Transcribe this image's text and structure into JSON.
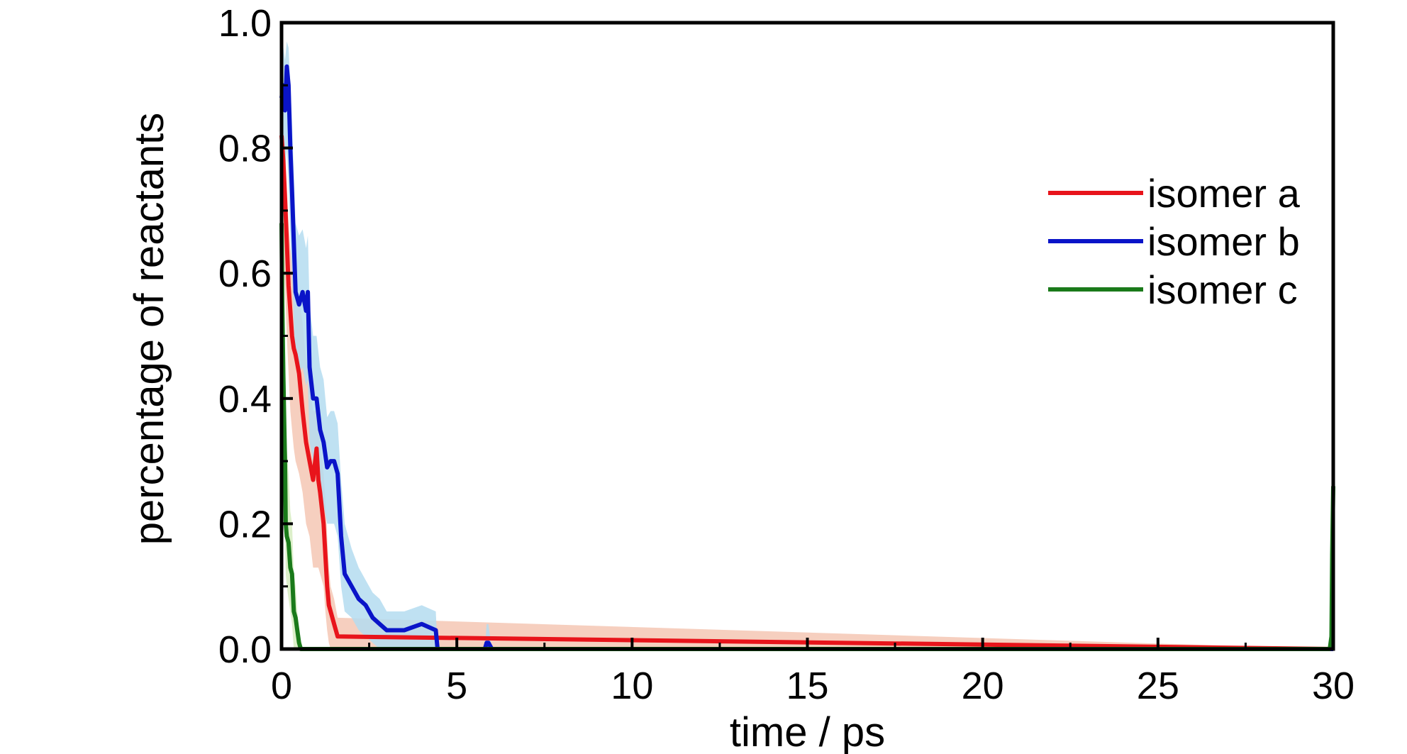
{
  "chart_data": {
    "type": "line",
    "title": "",
    "xlabel": "time / ps",
    "ylabel": "percentage of reactants",
    "xlim": [
      0,
      30
    ],
    "ylim": [
      0,
      1.0
    ],
    "xticks": [
      0,
      5,
      10,
      15,
      20,
      25,
      30
    ],
    "xtick_labels": [
      "0",
      "5",
      "10",
      "15",
      "20",
      "25",
      "30"
    ],
    "yticks": [
      0,
      0.2,
      0.4,
      0.6,
      0.8,
      1.0
    ],
    "ytick_labels": [
      "0.0",
      "0.2",
      "0.4",
      "0.6",
      "0.8",
      "1.0"
    ],
    "grid": false,
    "legend_position": "right",
    "series": [
      {
        "name": "isomer a",
        "color": "#e8141b",
        "band_color": "#f4c7b4",
        "x": [
          0,
          0.05,
          0.1,
          0.15,
          0.2,
          0.25,
          0.3,
          0.35,
          0.4,
          0.5,
          0.6,
          0.7,
          0.8,
          0.9,
          1.0,
          1.05,
          1.1,
          1.2,
          1.25,
          1.3,
          1.35,
          1.4,
          1.5,
          1.6,
          30
        ],
        "y": [
          0.82,
          0.78,
          0.72,
          0.65,
          0.58,
          0.54,
          0.5,
          0.48,
          0.47,
          0.44,
          0.38,
          0.33,
          0.3,
          0.27,
          0.32,
          0.27,
          0.25,
          0.2,
          0.15,
          0.1,
          0.07,
          0.06,
          0.04,
          0.02,
          0.0
        ],
        "band_lower": [
          0.68,
          0.64,
          0.58,
          0.5,
          0.44,
          0.38,
          0.35,
          0.32,
          0.3,
          0.28,
          0.25,
          0.2,
          0.18,
          0.13,
          0.13,
          0.13,
          0.12,
          0.1,
          0.06,
          0.03,
          0.01,
          0.0,
          0.0,
          0.0,
          0.0
        ],
        "band_upper": [
          0.86,
          0.84,
          0.8,
          0.74,
          0.68,
          0.64,
          0.62,
          0.6,
          0.58,
          0.56,
          0.52,
          0.46,
          0.42,
          0.38,
          0.38,
          0.35,
          0.33,
          0.28,
          0.24,
          0.18,
          0.13,
          0.1,
          0.08,
          0.05,
          0.0
        ]
      },
      {
        "name": "isomer b",
        "color": "#0a14c8",
        "band_color": "#b4dcf0",
        "x": [
          0,
          0.05,
          0.1,
          0.15,
          0.2,
          0.25,
          0.3,
          0.35,
          0.4,
          0.5,
          0.6,
          0.7,
          0.75,
          0.8,
          0.9,
          1.0,
          1.1,
          1.2,
          1.3,
          1.4,
          1.5,
          1.6,
          1.7,
          1.8,
          2.0,
          2.2,
          2.4,
          2.6,
          2.8,
          3.0,
          3.5,
          4.0,
          4.4,
          4.45,
          5.8,
          5.85,
          5.9,
          6.0,
          30
        ],
        "y": [
          0.88,
          0.9,
          0.86,
          0.93,
          0.9,
          0.8,
          0.73,
          0.65,
          0.57,
          0.55,
          0.57,
          0.54,
          0.57,
          0.45,
          0.4,
          0.4,
          0.35,
          0.33,
          0.29,
          0.3,
          0.3,
          0.28,
          0.18,
          0.12,
          0.1,
          0.08,
          0.07,
          0.05,
          0.04,
          0.03,
          0.03,
          0.04,
          0.03,
          0.0,
          0.0,
          0.01,
          0.01,
          0.0,
          0.0
        ],
        "band_lower": [
          0.78,
          0.8,
          0.76,
          0.8,
          0.74,
          0.66,
          0.6,
          0.52,
          0.46,
          0.44,
          0.45,
          0.42,
          0.43,
          0.33,
          0.3,
          0.28,
          0.25,
          0.23,
          0.2,
          0.2,
          0.2,
          0.18,
          0.1,
          0.06,
          0.05,
          0.03,
          0.02,
          0.01,
          0.0,
          0.0,
          0.0,
          0.0,
          0.0,
          0.0,
          0.0,
          0.0,
          0.0,
          0.0,
          0.0
        ],
        "band_upper": [
          0.94,
          0.96,
          0.94,
          0.97,
          0.96,
          0.9,
          0.84,
          0.76,
          0.68,
          0.66,
          0.67,
          0.64,
          0.66,
          0.55,
          0.5,
          0.5,
          0.45,
          0.43,
          0.37,
          0.38,
          0.38,
          0.36,
          0.27,
          0.2,
          0.16,
          0.13,
          0.11,
          0.09,
          0.08,
          0.06,
          0.06,
          0.07,
          0.06,
          0.0,
          0.0,
          0.04,
          0.04,
          0.0,
          0.0
        ]
      },
      {
        "name": "isomer c",
        "color": "#1a7a1a",
        "band_color": "#d6ecc0",
        "x": [
          0,
          0.02,
          0.05,
          0.08,
          0.1,
          0.12,
          0.15,
          0.2,
          0.25,
          0.3,
          0.35,
          0.4,
          0.45,
          0.5,
          0.55,
          29.9,
          29.95,
          29.97,
          30
        ],
        "y": [
          0.68,
          0.55,
          0.44,
          0.35,
          0.3,
          0.2,
          0.18,
          0.17,
          0.13,
          0.12,
          0.06,
          0.05,
          0.03,
          0.01,
          0.0,
          0.0,
          0.02,
          0.15,
          0.26
        ],
        "band_lower": [
          0.55,
          0.42,
          0.32,
          0.24,
          0.2,
          0.12,
          0.1,
          0.08,
          0.06,
          0.04,
          0.0,
          0.0,
          0.0,
          0.0,
          0.0,
          0.0,
          0.0,
          0.0,
          0.0
        ],
        "band_upper": [
          1.0,
          0.98,
          0.8,
          0.6,
          0.5,
          0.38,
          0.32,
          0.28,
          0.22,
          0.2,
          0.12,
          0.1,
          0.06,
          0.03,
          0.0,
          0.0,
          0.0,
          0.0,
          0.0
        ]
      }
    ]
  }
}
